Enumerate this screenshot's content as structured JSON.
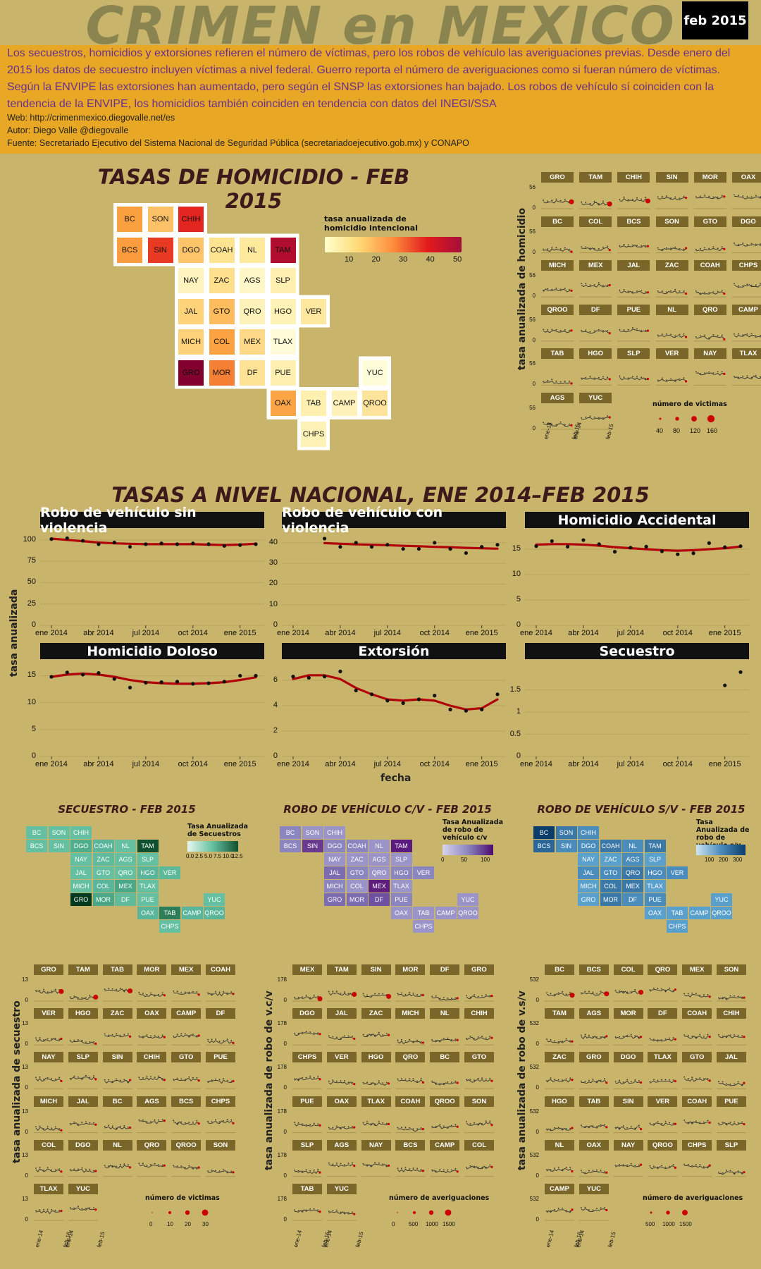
{
  "header": {
    "title": "CRIMEN en MEXICO",
    "date": "feb 2015"
  },
  "info": {
    "description": "Los secuestros, homicidios y extorsiones refieren el número de víctimas, pero los robos de vehículo las averiguaciones previas. Desde enero del 2015 los datos de secuestro incluyen víctimas a nivel federal. Guerro reporta el número de averiguaciones como si fueran número de víctimas. Según la ENVIPE las extorsiones han aumentado, pero según el SNSP las extorsiones han bajado. Los robos de vehículo sí coinciden con la tendencia de la ENVIPE, los homicidios también coinciden en tendencia con datos del INEGI/SSA",
    "web": "Web: http://crimenmexico.diegovalle.net/es",
    "author": "Autor: Diego Valle @diegovalle",
    "source": "Fuente: Secretariado Ejecutivo del Sistema Nacional de Seguridad Pública (secretariadoejecutivo.gob.mx) y CONAPO"
  },
  "colors": {
    "background": "#c8b46a",
    "banner": "#e8a825",
    "trend": "#b0000a",
    "strip": "#7a6628"
  },
  "homicide_map": {
    "title": "TASAS DE HOMICIDIO - FEB 2015",
    "legend_title": "tasa anualizada de homicidio intencional",
    "legend_ticks": [
      "10",
      "20",
      "30",
      "40",
      "50"
    ],
    "states": [
      {
        "abbr": "BC",
        "color": "#f9a03f"
      },
      {
        "abbr": "SON",
        "color": "#fdc168"
      },
      {
        "abbr": "CHIH",
        "color": "#e3251f"
      },
      {
        "abbr": "BCS",
        "color": "#fb9c3f"
      },
      {
        "abbr": "SIN",
        "color": "#e83a22"
      },
      {
        "abbr": "DGO",
        "color": "#fdc46a"
      },
      {
        "abbr": "COAH",
        "color": "#fee391"
      },
      {
        "abbr": "NL",
        "color": "#fee99d"
      },
      {
        "abbr": "TAM",
        "color": "#b10d2e"
      },
      {
        "abbr": "NAY",
        "color": "#fff4bd"
      },
      {
        "abbr": "ZAC",
        "color": "#fee08e"
      },
      {
        "abbr": "AGS",
        "color": "#fff7c8"
      },
      {
        "abbr": "SLP",
        "color": "#ffefb0"
      },
      {
        "abbr": "JAL",
        "color": "#fed37a"
      },
      {
        "abbr": "GTO",
        "color": "#fdbc5e"
      },
      {
        "abbr": "QRO",
        "color": "#fff3bb"
      },
      {
        "abbr": "HGO",
        "color": "#fff2b6"
      },
      {
        "abbr": "VER",
        "color": "#fee8a0"
      },
      {
        "abbr": "MICH",
        "color": "#fed27a"
      },
      {
        "abbr": "COL",
        "color": "#fba242"
      },
      {
        "abbr": "MEX",
        "color": "#fed98a"
      },
      {
        "abbr": "TLAX",
        "color": "#fffbd8"
      },
      {
        "abbr": "GRO",
        "color": "#82002d"
      },
      {
        "abbr": "MOR",
        "color": "#f67f36"
      },
      {
        "abbr": "DF",
        "color": "#fee396"
      },
      {
        "abbr": "PUE",
        "color": "#fff0b2"
      },
      {
        "abbr": "YUC",
        "color": "#fffcd9"
      },
      {
        "abbr": "OAX",
        "color": "#fba446"
      },
      {
        "abbr": "TAB",
        "color": "#fff0b0"
      },
      {
        "abbr": "CAMP",
        "color": "#fff3bb"
      },
      {
        "abbr": "QROO",
        "color": "#fee39a"
      },
      {
        "abbr": "CHPS",
        "color": "#fff2b6"
      }
    ]
  },
  "homicide_small": {
    "ylabel": "tasa anualizada de homicidio",
    "ytick_top": "56",
    "ytick_bottom": "0",
    "xticks": [
      "ene-14",
      "feb-15",
      "ene-14",
      "feb-15"
    ],
    "legend_title": "número de victimas",
    "legend_values": [
      "40",
      "80",
      "120",
      "160"
    ],
    "states": [
      "GRO",
      "TAM",
      "CHIH",
      "SIN",
      "MOR",
      "OAX",
      "BC",
      "COL",
      "BCS",
      "SON",
      "GTO",
      "DGO",
      "MICH",
      "MEX",
      "JAL",
      "ZAC",
      "COAH",
      "CHPS",
      "QROO",
      "DF",
      "PUE",
      "NL",
      "QRO",
      "CAMP",
      "TAB",
      "HGO",
      "SLP",
      "VER",
      "NAY",
      "TLAX",
      "AGS",
      "YUC"
    ]
  },
  "national": {
    "title": "TASAS A NIVEL NACIONAL, ENE 2014–FEB 2015",
    "ylabel": "tasa anualizada",
    "xlabel": "fecha",
    "xticks": [
      "ene 2014",
      "abr 2014",
      "jul 2014",
      "oct 2014",
      "ene 2015"
    ]
  },
  "chart_data": [
    {
      "type": "scatter",
      "title": "Robo de vehículo sin violencia",
      "x": [
        "2014-01",
        "2014-02",
        "2014-03",
        "2014-04",
        "2014-05",
        "2014-06",
        "2014-07",
        "2014-08",
        "2014-09",
        "2014-10",
        "2014-11",
        "2014-12",
        "2015-01",
        "2015-02"
      ],
      "values": [
        101,
        102,
        99,
        95,
        97,
        92,
        95,
        96,
        95,
        96,
        95,
        93,
        94,
        95
      ],
      "trend": [
        101.5,
        100,
        98.5,
        97,
        96,
        95.5,
        95,
        95,
        95,
        95,
        94.5,
        94,
        94.5,
        95.5
      ],
      "yticks": [
        0,
        25,
        50,
        75,
        100
      ],
      "ylim": [
        0,
        104
      ]
    },
    {
      "type": "scatter",
      "title": "Robo de vehículo con violencia",
      "x": [
        "2014-01",
        "2014-02",
        "2014-03",
        "2014-04",
        "2014-05",
        "2014-06",
        "2014-07",
        "2014-08",
        "2014-09",
        "2014-10",
        "2014-11",
        "2014-12",
        "2015-01",
        "2015-02"
      ],
      "values": [
        null,
        null,
        42,
        38,
        40,
        38,
        39,
        37,
        37,
        40,
        37,
        35,
        38,
        39
      ],
      "trend": [
        null,
        null,
        39.8,
        39.5,
        39.2,
        39,
        38.8,
        38.5,
        38.3,
        38,
        37.8,
        37.5,
        37.3,
        37.1
      ],
      "yticks": [
        0,
        10,
        20,
        30,
        40
      ],
      "ylim": [
        0,
        43
      ]
    },
    {
      "type": "scatter",
      "title": "Homicidio Accidental",
      "x": [
        "2014-01",
        "2014-02",
        "2014-03",
        "2014-04",
        "2014-05",
        "2014-06",
        "2014-07",
        "2014-08",
        "2014-09",
        "2014-10",
        "2014-11",
        "2014-12",
        "2015-01",
        "2015-02"
      ],
      "values": [
        15.6,
        16.6,
        15.5,
        16.8,
        16,
        14.5,
        15.3,
        15.5,
        14.6,
        14,
        14.2,
        16.2,
        15.4,
        15.6
      ],
      "trend": [
        15.9,
        16,
        16,
        15.9,
        15.7,
        15.4,
        15.2,
        15,
        14.8,
        14.7,
        14.8,
        15,
        15.2,
        15.5
      ],
      "yticks": [
        0,
        5,
        10,
        15
      ],
      "ylim": [
        0,
        17.5
      ]
    },
    {
      "type": "scatter",
      "title": "Homicidio Doloso",
      "x": [
        "2014-01",
        "2014-02",
        "2014-03",
        "2014-04",
        "2014-05",
        "2014-06",
        "2014-07",
        "2014-08",
        "2014-09",
        "2014-10",
        "2014-11",
        "2014-12",
        "2015-01",
        "2015-02"
      ],
      "values": [
        14.8,
        15.6,
        15.2,
        15.5,
        14.4,
        12.8,
        13.7,
        13.8,
        13.9,
        13.5,
        13.6,
        13.9,
        15,
        15
      ],
      "trend": [
        14.8,
        15.2,
        15.4,
        15.2,
        14.8,
        14.2,
        13.8,
        13.6,
        13.5,
        13.5,
        13.6,
        13.8,
        14.2,
        14.7
      ],
      "yticks": [
        0,
        5,
        10,
        15
      ],
      "ylim": [
        0,
        16.5
      ]
    },
    {
      "type": "scatter",
      "title": "Extorsión",
      "x": [
        "2014-01",
        "2014-02",
        "2014-03",
        "2014-04",
        "2014-05",
        "2014-06",
        "2014-07",
        "2014-08",
        "2014-09",
        "2014-10",
        "2014-11",
        "2014-12",
        "2015-01",
        "2015-02"
      ],
      "values": [
        6.3,
        6.2,
        6.3,
        6.7,
        5.2,
        4.9,
        4.4,
        4.2,
        4.5,
        4.8,
        3.7,
        3.6,
        3.7,
        4.9
      ],
      "trend": [
        6.1,
        6.4,
        6.4,
        6.1,
        5.4,
        4.9,
        4.5,
        4.4,
        4.5,
        4.4,
        4,
        3.7,
        3.8,
        4.5
      ],
      "yticks": [
        0,
        2,
        4,
        6
      ],
      "ylim": [
        0,
        7
      ]
    },
    {
      "type": "scatter",
      "title": "Secuestro",
      "x": [
        "2014-01",
        "2014-02",
        "2014-03",
        "2014-04",
        "2014-05",
        "2014-06",
        "2014-07",
        "2014-08",
        "2014-09",
        "2014-10",
        "2014-11",
        "2014-12",
        "2015-01",
        "2015-02"
      ],
      "values": [
        null,
        null,
        null,
        null,
        null,
        null,
        null,
        null,
        null,
        null,
        null,
        null,
        1.6,
        1.9
      ],
      "trend": [],
      "yticks": [
        0,
        0.5,
        1,
        1.5
      ],
      "ylim": [
        0,
        2
      ]
    }
  ],
  "kidnap": {
    "title": "SECUESTRO - FEB 2015",
    "legend_title": "Tasa Anualizada de Secuestros",
    "legend_ticks": [
      "0.0",
      "2.5",
      "5.0",
      "7.5",
      "10.0",
      "12.5"
    ],
    "ylabel": "tasa anualizada de secuestro",
    "ytick_top": "13",
    "ytick_bottom": "0",
    "size_legend_title": "número de victimas",
    "size_legend_values": [
      "0",
      "10",
      "20",
      "30"
    ],
    "small_states": [
      "GRO",
      "TAM",
      "TAB",
      "MOR",
      "MEX",
      "COAH",
      "VER",
      "HGO",
      "ZAC",
      "OAX",
      "CAMP",
      "DF",
      "NAY",
      "SLP",
      "SIN",
      "CHIH",
      "GTO",
      "PUE",
      "MICH",
      "JAL",
      "BC",
      "AGS",
      "BCS",
      "CHPS",
      "COL",
      "DGO",
      "NL",
      "QRO",
      "QROO",
      "SON",
      "TLAX",
      "YUC"
    ],
    "colors": {
      "BC": "#64c0a0",
      "SON": "#64c0a0",
      "CHIH": "#64c0a0",
      "BCS": "#64c0a0",
      "SIN": "#64c0a0",
      "DGO": "#4fae8c",
      "COAH": "#5ab69a",
      "NL": "#64c0a0",
      "TAM": "#0f5030",
      "NAY": "#64c0a0",
      "ZAC": "#5fbb9c",
      "AGS": "#64c0a0",
      "SLP": "#64c0a0",
      "JAL": "#64c0a0",
      "GTO": "#64c0a0",
      "QRO": "#64c0a0",
      "HGO": "#5ab69a",
      "VER": "#5cb99a",
      "MICH": "#64c0a0",
      "COL": "#5ab69a",
      "MEX": "#4aa888",
      "TLAX": "#64c0a0",
      "GRO": "#003a1e",
      "MOR": "#4aa888",
      "DF": "#5fbb9c",
      "PUE": "#64c0a0",
      "YUC": "#64c0a0",
      "OAX": "#5ab69a",
      "TAB": "#2c7e58",
      "CAMP": "#5ab69a",
      "QROO": "#5ab69a",
      "CHPS": "#64c0a0"
    }
  },
  "car_cv": {
    "title": "ROBO DE VEHÍCULO C/V - FEB 2015",
    "legend_title": "Tasa Anualizada de robo de vehículo c/v",
    "legend_ticks": [
      "0",
      "50",
      "100"
    ],
    "ylabel": "tasa anualizada de robo de v.c/v",
    "ytick_top": "178",
    "ytick_bottom": "0",
    "size_legend_title": "número de averiguaciones",
    "size_legend_values": [
      "0",
      "500",
      "1000",
      "1500"
    ],
    "small_states": [
      "MEX",
      "TAM",
      "SIN",
      "MOR",
      "DF",
      "GRO",
      "DGO",
      "JAL",
      "ZAC",
      "MICH",
      "NL",
      "CHIH",
      "CHPS",
      "VER",
      "HGO",
      "QRO",
      "BC",
      "GTO",
      "PUE",
      "OAX",
      "TLAX",
      "COAH",
      "QROO",
      "SON",
      "SLP",
      "AGS",
      "NAY",
      "BCS",
      "CAMP",
      "COL",
      "TAB",
      "YUC"
    ],
    "colors": {
      "BC": "#8c86c0",
      "SON": "#9a94c8",
      "CHIH": "#9a94c8",
      "BCS": "#8c86c0",
      "SIN": "#6a3a8e",
      "DGO": "#8c86c0",
      "COAH": "#8c86c0",
      "NL": "#9a94c8",
      "TAM": "#5a1a80",
      "NAY": "#9a94c8",
      "ZAC": "#9a94c8",
      "AGS": "#9a94c8",
      "SLP": "#9a94c8",
      "JAL": "#7c6cb0",
      "GTO": "#8c86c0",
      "QRO": "#9a94c8",
      "HGO": "#8c86c0",
      "VER": "#8c86c0",
      "MICH": "#8c86c0",
      "COL": "#9a94c8",
      "MEX": "#5e1e7e",
      "TLAX": "#9a94c8",
      "GRO": "#7c6cb0",
      "MOR": "#7c6cb0",
      "DF": "#6e50a0",
      "PUE": "#8c86c0",
      "YUC": "#9a94c8",
      "OAX": "#9a94c8",
      "TAB": "#9a94c8",
      "CAMP": "#9a94c8",
      "QROO": "#9a94c8",
      "CHPS": "#9a94c8"
    }
  },
  "car_sv": {
    "title": "ROBO DE VEHÍCULO S/V - FEB 2015",
    "legend_title": "Tasa Anualizada de robo de vehículo s/v",
    "legend_ticks": [
      "100",
      "200",
      "300"
    ],
    "ylabel": "tasa anualizada de robo de v.s/v",
    "ytick_top": "532",
    "ytick_bottom": "0",
    "size_legend_title": "número de averiguaciones",
    "size_legend_values": [
      "500",
      "1000",
      "1500"
    ],
    "small_states": [
      "BC",
      "BCS",
      "COL",
      "QRO",
      "MEX",
      "SON",
      "TAM",
      "AGS",
      "MOR",
      "DF",
      "COAH",
      "CHIH",
      "ZAC",
      "GRO",
      "DGO",
      "TLAX",
      "GTO",
      "JAL",
      "HGO",
      "TAB",
      "SIN",
      "VER",
      "COAH",
      "PUE",
      "NL",
      "OAX",
      "NAY",
      "QROO",
      "CHPS",
      "SLP",
      "CAMP",
      "YUC"
    ],
    "colors": {
      "BC": "#0a3d6a",
      "SON": "#3a78a8",
      "CHIH": "#4a8cbc",
      "BCS": "#2a6698",
      "SIN": "#4a8cbc",
      "DGO": "#4a8cbc",
      "COAH": "#3a78a8",
      "NL": "#4a8cbc",
      "TAM": "#3a78a8",
      "NAY": "#5aa0cc",
      "ZAC": "#5aa0cc",
      "AGS": "#4a8cbc",
      "SLP": "#5aa0cc",
      "JAL": "#4a8cbc",
      "GTO": "#4a8cbc",
      "QRO": "#3a78a8",
      "HGO": "#4a8cbc",
      "VER": "#4a8cbc",
      "MICH": "#5aa0cc",
      "COL": "#3a78a8",
      "MEX": "#3a78a8",
      "TLAX": "#5aa0cc",
      "GRO": "#5aa0cc",
      "MOR": "#3a78a8",
      "DF": "#4a8cbc",
      "PUE": "#4a8cbc",
      "YUC": "#5aa0cc",
      "OAX": "#5aa0cc",
      "TAB": "#5aa0cc",
      "CAMP": "#5aa0cc",
      "QROO": "#5aa0cc",
      "CHPS": "#5aa0cc"
    }
  }
}
